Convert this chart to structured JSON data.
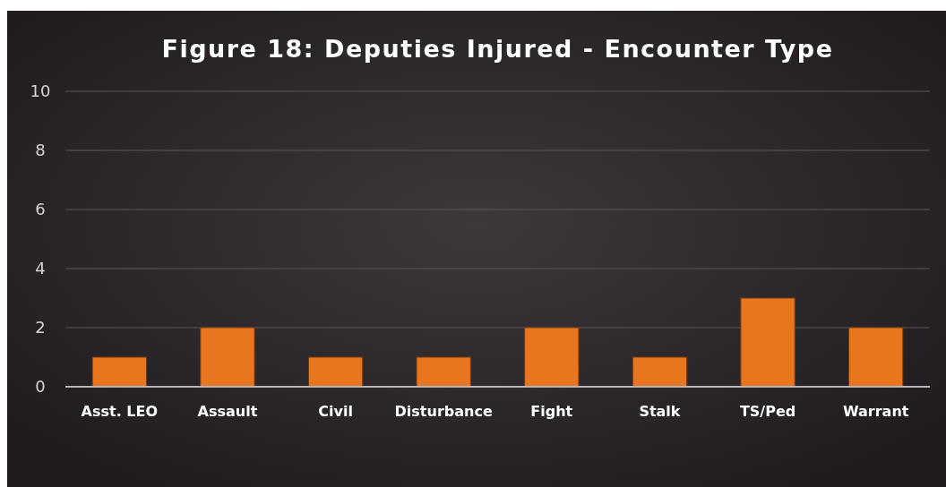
{
  "chart_data": {
    "type": "bar",
    "title": "Figure 18: Deputies Injured - Encounter Type",
    "categories": [
      "Asst. LEO",
      "Assault",
      "Civil",
      "Disturbance",
      "Fight",
      "Stalk",
      "TS/Ped",
      "Warrant"
    ],
    "values": [
      1,
      2,
      1,
      1,
      2,
      1,
      3,
      2
    ],
    "color": "#e8761e",
    "ylim": [
      0,
      10
    ],
    "yticks": [
      0,
      2,
      4,
      6,
      8,
      10
    ],
    "grid": "y"
  }
}
